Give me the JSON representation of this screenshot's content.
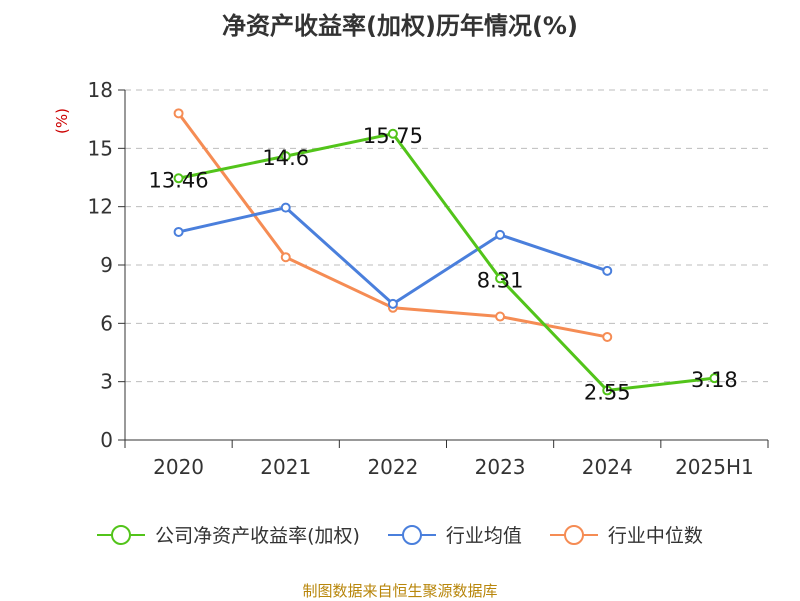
{
  "chart_data": {
    "type": "line",
    "title": "净资产收益率(加权)历年情况(%)",
    "ylabel": "(%)",
    "categories": [
      "2020",
      "2021",
      "2022",
      "2023",
      "2024",
      "2025H1"
    ],
    "ylim": [
      0,
      18
    ],
    "yticks": [
      0,
      3,
      6,
      9,
      12,
      15,
      18
    ],
    "grid": true,
    "legend_position": "bottom",
    "series": [
      {
        "name": "公司净资产收益率(加权)",
        "color": "#52c41a",
        "values": [
          13.46,
          14.6,
          15.75,
          8.31,
          2.55,
          3.18
        ],
        "labels": [
          "13.46",
          "14.6",
          "15.75",
          "8.31",
          "2.55",
          "3.18"
        ]
      },
      {
        "name": "行业均值",
        "color": "#4a7fdc",
        "values": [
          10.7,
          11.95,
          7.0,
          10.55,
          8.7,
          null
        ]
      },
      {
        "name": "行业中位数",
        "color": "#f58c54",
        "values": [
          16.8,
          9.4,
          6.8,
          6.35,
          5.3,
          null
        ]
      }
    ],
    "source": "制图数据来自恒生聚源数据库"
  }
}
